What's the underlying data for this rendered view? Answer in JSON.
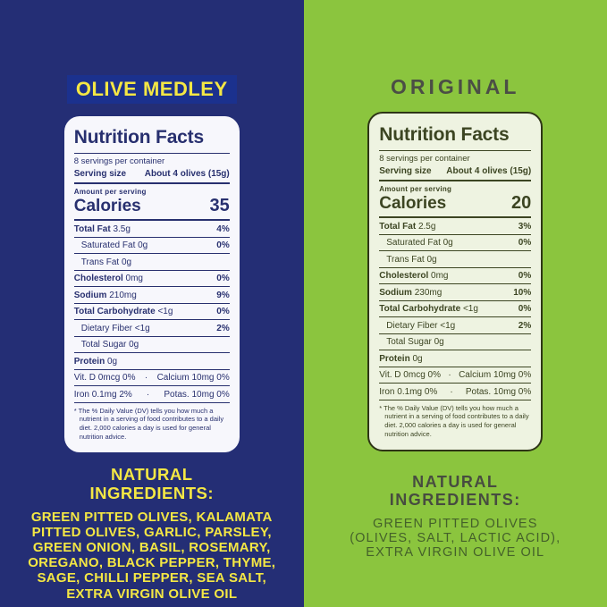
{
  "colors": {
    "navy_bg": "#242E75",
    "green_bg": "#8BC53E",
    "yellow": "#F4E744",
    "title_highlight": "#1B318E",
    "left_panel_bg": "#F7F7FC",
    "left_panel_text": "#28306F",
    "right_panel_bg": "#EEF3E1",
    "right_panel_border": "#2E3516",
    "right_panel_text": "#3C4522",
    "original_title": "#4B4E45",
    "right_ingredients_heading": "#474C40",
    "right_ingredients_text": "#44612A"
  },
  "left": {
    "title": "OLIVE MEDLEY",
    "panel": {
      "title": "Nutrition Facts",
      "servings_per_container": "8 servings per container",
      "serving_size_label": "Serving size",
      "serving_size_value": "About 4 olives (15g)",
      "amount_per_serving": "Amount per serving",
      "calories_label": "Calories",
      "calories_value": "35",
      "rows": [
        {
          "label": "Total Fat",
          "amount": "3.5g",
          "dv": "4%"
        },
        {
          "label": "Saturated Fat",
          "amount": "0g",
          "dv": "0%",
          "indent": true
        },
        {
          "label": "Trans Fat",
          "amount": "0g",
          "dv": "",
          "indent": true
        },
        {
          "label": "Cholesterol",
          "amount": "0mg",
          "dv": "0%"
        },
        {
          "label": "Sodium",
          "amount": "210mg",
          "dv": "9%"
        },
        {
          "label": "Total Carbohydrate",
          "amount": "<1g",
          "dv": "0%"
        },
        {
          "label": "Dietary Fiber",
          "amount": "<1g",
          "dv": "2%",
          "indent": true
        },
        {
          "label": "Total Sugar",
          "amount": "0g",
          "dv": "",
          "indent": true
        },
        {
          "label": "Protein",
          "amount": "0g",
          "dv": ""
        }
      ],
      "micro_rows": [
        {
          "left": "Vit. D 0mcg 0%",
          "sep": "·",
          "right": "Calcium 10mg 0%"
        },
        {
          "left": "Iron 0.1mg 2%",
          "sep": "·",
          "right": "Potas. 10mg 0%"
        }
      ],
      "footnote": "* The % Daily Value (DV) tells you how much a nutrient in a serving of food contributes to a daily diet. 2,000 calories a day is used for general nutrition advice."
    },
    "ingredients_heading": "NATURAL INGREDIENTS:",
    "ingredients_lines": [
      "GREEN PITTED OLIVES, KALAMATA",
      "PITTED OLIVES, GARLIC, PARSLEY,",
      "GREEN ONION, BASIL, ROSEMARY,",
      "OREGANO, BLACK PEPPER, THYME,",
      "SAGE, CHILLI PEPPER, SEA SALT,",
      "EXTRA VIRGIN OLIVE OIL"
    ]
  },
  "right": {
    "title": "ORIGINAL",
    "panel": {
      "title": "Nutrition Facts",
      "servings_per_container": "8 servings per container",
      "serving_size_label": "Serving size",
      "serving_size_value": "About 4 olives (15g)",
      "amount_per_serving": "Amount per serving",
      "calories_label": "Calories",
      "calories_value": "20",
      "rows": [
        {
          "label": "Total Fat",
          "amount": "2.5g",
          "dv": "3%"
        },
        {
          "label": "Saturated Fat",
          "amount": "0g",
          "dv": "0%",
          "indent": true
        },
        {
          "label": "Trans Fat",
          "amount": "0g",
          "dv": "",
          "indent": true
        },
        {
          "label": "Cholesterol",
          "amount": "0mg",
          "dv": "0%"
        },
        {
          "label": "Sodium",
          "amount": "230mg",
          "dv": "10%"
        },
        {
          "label": "Total Carbohydrate",
          "amount": "<1g",
          "dv": "0%"
        },
        {
          "label": "Dietary Fiber",
          "amount": "<1g",
          "dv": "2%",
          "indent": true
        },
        {
          "label": "Total Sugar",
          "amount": "0g",
          "dv": "",
          "indent": true
        },
        {
          "label": "Protein",
          "amount": "0g",
          "dv": ""
        }
      ],
      "micro_rows": [
        {
          "left": "Vit. D 0mcg 0%",
          "sep": "·",
          "right": "Calcium 10mg 0%"
        },
        {
          "left": "Iron 0.1mg 0%",
          "sep": "·",
          "right": "Potas. 10mg 0%"
        }
      ],
      "footnote": "* The % Daily Value (DV) tells you how much a nutrient in a serving of food contributes to a daily diet. 2,000 calories a day is used for general nutrition advice."
    },
    "ingredients_heading": "NATURAL INGREDIENTS:",
    "ingredients_lines": [
      "GREEN PITTED OLIVES",
      "(OLIVES, SALT, LACTIC ACID),",
      "EXTRA VIRGIN OLIVE OIL"
    ]
  }
}
